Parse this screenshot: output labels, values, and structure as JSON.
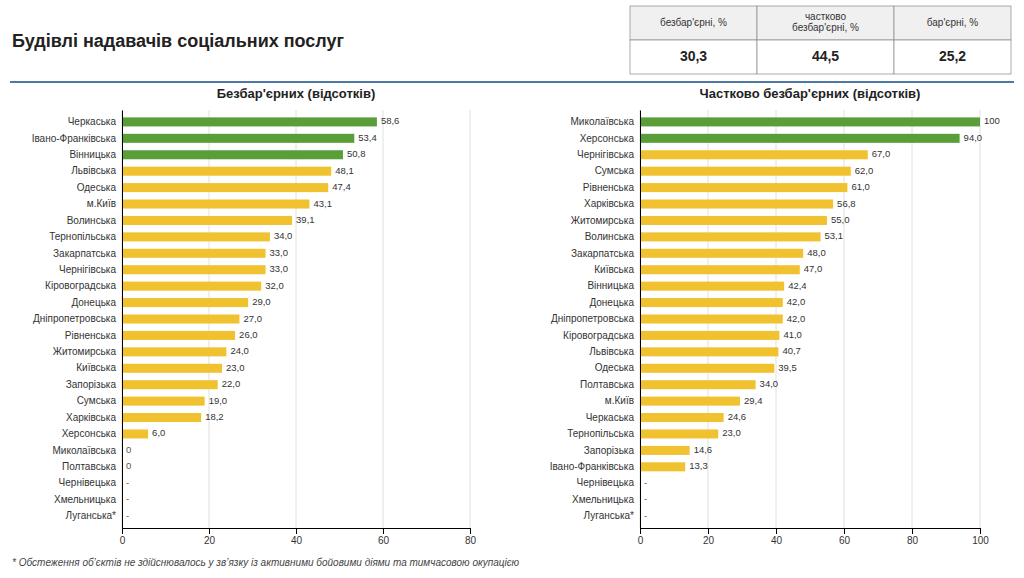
{
  "title": "Будівлі надавачів соціальних послуг",
  "table": {
    "headers": [
      "безбар'єрні, %",
      "частково\nбезбар'єрні, %",
      "бар'єрні, %"
    ],
    "values": [
      30.3,
      44.5,
      25.2
    ],
    "value_labels": [
      "30,3",
      "44,5",
      "25,2"
    ]
  },
  "annotations": [
    "* Обстеження об’єктів не здійснювалось у зв’язку із активними бойовими діями та тимчасовою окупацією"
  ],
  "chart_data": [
    {
      "type": "bar",
      "orientation": "horizontal",
      "title": "Безбар'єрних (відсотків)",
      "categories": [
        "Черкаська",
        "Івано-Франківська",
        "Вінницька",
        "Львівська",
        "Одеська",
        "м.Київ",
        "Волинська",
        "Тернопільська",
        "Закарпатська",
        "Чернігівська",
        "Кіровоградська",
        "Донецька",
        "Дніпропетровська",
        "Рівненська",
        "Житомирська",
        "Київська",
        "Запорізька",
        "Сумська",
        "Харківська",
        "Херсонська",
        "Миколаївська",
        "Полтавська",
        "Чернівецька",
        "Хмельницька",
        "Луганська*"
      ],
      "values": [
        58.6,
        53.4,
        50.8,
        48.1,
        47.4,
        43.1,
        39.1,
        34.0,
        33.0,
        33.0,
        32.0,
        29.0,
        27.0,
        26.0,
        24.0,
        23.0,
        22.0,
        19.0,
        18.2,
        6.0,
        0,
        0,
        null,
        null,
        null
      ],
      "value_labels": [
        "58,6",
        "53,4",
        "50,8",
        "48,1",
        "47,4",
        "43,1",
        "39,1",
        "34,0",
        "33,0",
        "33,0",
        "32,0",
        "29,0",
        "27,0",
        "26,0",
        "24,0",
        "23,0",
        "22,0",
        "19,0",
        "18,2",
        "6,0",
        "0",
        "0",
        "-",
        "-",
        "-"
      ],
      "colors": [
        "#5a9e3a",
        "#5a9e3a",
        "#5a9e3a",
        "#f0c230",
        "#f0c230",
        "#f0c230",
        "#f0c230",
        "#f0c230",
        "#f0c230",
        "#f0c230",
        "#f0c230",
        "#f0c230",
        "#f0c230",
        "#f0c230",
        "#f0c230",
        "#f0c230",
        "#f0c230",
        "#f0c230",
        "#f0c230",
        "#f0c230",
        "#f0c230",
        "#f0c230",
        "#f0c230",
        "#f0c230",
        "#f0c230"
      ],
      "xlim": [
        0,
        80
      ],
      "xticks": [
        0,
        20,
        40,
        60,
        80
      ],
      "grid": true,
      "data_labels": true
    },
    {
      "type": "bar",
      "orientation": "horizontal",
      "title": "Частково безбар'єрних (відсотків)",
      "categories": [
        "Миколаївська",
        "Херсонська",
        "Чернігівська",
        "Сумська",
        "Рівненська",
        "Харківська",
        "Житомирська",
        "Волинська",
        "Закарпатська",
        "Київська",
        "Вінницька",
        "Донецька",
        "Дніпропетровська",
        "Кіровоградська",
        "Львівська",
        "Одеська",
        "Полтавська",
        "м.Київ",
        "Черкаська",
        "Тернопільська",
        "Запорізька",
        "Івано-Франківська",
        "Чернівецька",
        "Хмельницька",
        "Луганська*"
      ],
      "values": [
        100,
        94.0,
        67.0,
        62.0,
        61.0,
        56.8,
        55.0,
        53.1,
        48.0,
        47.0,
        42.4,
        42.0,
        42.0,
        41.0,
        40.7,
        39.5,
        34.0,
        29.4,
        24.6,
        23.0,
        14.6,
        13.3,
        null,
        null,
        null
      ],
      "value_labels": [
        "100",
        "94,0",
        "67,0",
        "62,0",
        "61,0",
        "56,8",
        "55,0",
        "53,1",
        "48,0",
        "47,0",
        "42,4",
        "42,0",
        "42,0",
        "41,0",
        "40,7",
        "39,5",
        "34,0",
        "29,4",
        "24,6",
        "23,0",
        "14,6",
        "13,3",
        "-",
        "-",
        "-"
      ],
      "colors": [
        "#5a9e3a",
        "#5a9e3a",
        "#f0c230",
        "#f0c230",
        "#f0c230",
        "#f0c230",
        "#f0c230",
        "#f0c230",
        "#f0c230",
        "#f0c230",
        "#f0c230",
        "#f0c230",
        "#f0c230",
        "#f0c230",
        "#f0c230",
        "#f0c230",
        "#f0c230",
        "#f0c230",
        "#f0c230",
        "#f0c230",
        "#f0c230",
        "#f0c230",
        "#f0c230",
        "#f0c230",
        "#f0c230"
      ],
      "xlim": [
        0,
        100
      ],
      "xticks": [
        0,
        20,
        40,
        60,
        80,
        100
      ],
      "grid": true,
      "data_labels": true
    }
  ]
}
